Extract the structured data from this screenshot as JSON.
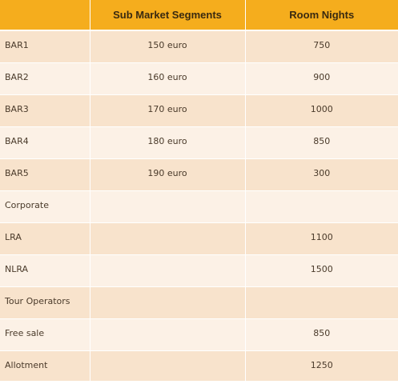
{
  "table": {
    "headers": [
      "",
      "Sub Market Segments",
      "Room Nights"
    ],
    "rows": [
      {
        "segment": "BAR1",
        "price": "150 euro",
        "nights": "750"
      },
      {
        "segment": "BAR2",
        "price": "160 euro",
        "nights": "900"
      },
      {
        "segment": "BAR3",
        "price": "170 euro",
        "nights": "1000"
      },
      {
        "segment": "BAR4",
        "price": "180 euro",
        "nights": "850"
      },
      {
        "segment": "BAR5",
        "price": "190 euro",
        "nights": "300"
      },
      {
        "segment": "Corporate",
        "price": "",
        "nights": ""
      },
      {
        "segment": "LRA",
        "price": "",
        "nights": "1100"
      },
      {
        "segment": "NLRA",
        "price": "",
        "nights": "1500"
      },
      {
        "segment": "Tour Operators",
        "price": "",
        "nights": ""
      },
      {
        "segment": "Free sale",
        "price": "",
        "nights": "850"
      },
      {
        "segment": "Allotment",
        "price": "",
        "nights": "1250"
      }
    ]
  },
  "colors": {
    "header_bg": "#f5ad1d",
    "row_odd_bg": "#f8e3cc",
    "row_even_bg": "#fcf1e6"
  }
}
